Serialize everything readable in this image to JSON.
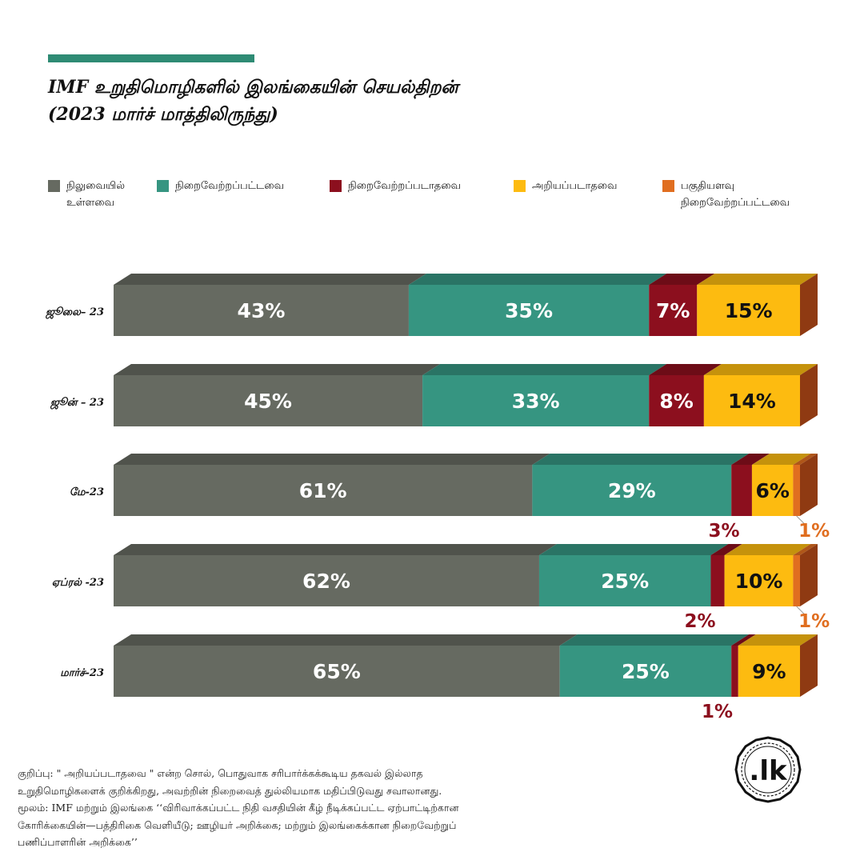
{
  "title": {
    "line1": "IMF உறுதிமொழிகளில் இலங்கையின் செயல்திறன்",
    "line2": "(2023 மார்ச் மாத்திலிருந்து)"
  },
  "colors": {
    "accent": "#2e8b74",
    "pending": "#666a61",
    "fulfilled": "#369581",
    "not_fulfilled": "#8c0f1e",
    "unknown": "#fdbb10",
    "partial": "#e06e20"
  },
  "legend": [
    {
      "key": "pending",
      "label": "நிலுவையில் உள்ளவை"
    },
    {
      "key": "fulfilled",
      "label": "நிறைவேற்றப்பட்டவை"
    },
    {
      "key": "not_fulfilled",
      "label": "நிறைவேற்றப்படாதவை"
    },
    {
      "key": "unknown",
      "label": "அறியப்படாதவை"
    },
    {
      "key": "partial",
      "label": "பகுதியளவு நிறைவேற்றப்பட்டவை"
    }
  ],
  "chart_data": {
    "type": "bar",
    "orientation": "horizontal",
    "stacked": true,
    "value_format": "percent",
    "categories": [
      "ஜூலை– 23",
      "ஜூன் – 23",
      "மே-23",
      "ஏப்ரல் -23",
      "மார்ச்-23"
    ],
    "series": [
      {
        "name": "நிலுவையில் உள்ளவை",
        "key": "pending",
        "values": [
          43,
          45,
          61,
          62,
          65
        ],
        "labels": [
          "43%",
          "45%",
          "61%",
          "62%",
          "65%"
        ]
      },
      {
        "name": "நிறைவேற்றப்பட்டவை",
        "key": "fulfilled",
        "values": [
          35,
          33,
          29,
          25,
          25
        ],
        "labels": [
          "35%",
          "33%",
          "29%",
          "25%",
          "25%"
        ]
      },
      {
        "name": "நிறைவேற்றப்படாதவை",
        "key": "not_fulfilled",
        "values": [
          7,
          8,
          3,
          2,
          1
        ],
        "labels": [
          "7%",
          "8%",
          "3%",
          "2%",
          "1%"
        ]
      },
      {
        "name": "அறியப்படாதவை",
        "key": "unknown",
        "values": [
          15,
          14,
          6,
          10,
          9
        ],
        "labels": [
          "15%",
          "14%",
          "6%",
          "10%",
          "9%"
        ]
      },
      {
        "name": "பகுதியளவு நிறைவேற்றப்பட்டவை",
        "key": "partial",
        "values": [
          0,
          0,
          1,
          1,
          0
        ],
        "labels": [
          "",
          "",
          "1%",
          "1%",
          ""
        ]
      }
    ],
    "xlim": [
      0,
      100
    ],
    "grid": false,
    "legend_position": "top"
  },
  "note": {
    "line1": "குறிப்பு: \" அறியப்படாதவை \" என்ற சொல், பொதுவாக சரிபார்க்கக்கூடிய தகவல் இல்லாத",
    "line2": "உறுதிமொழிகளைக் குறிக்கிறது, அவற்றின் நிறைவைத் துல்லியமாக மதிப்பிடுவது சவாலானது.",
    "line3": "மூலம்: IMF மற்றும் இலங்கை ‘‘விரிவாக்கப்பட்ட நிதி வசதியின் கீழ் நீடிக்கப்பட்ட ஏற்பாட்டிற்கான",
    "line4": "கோரிக்கையின்—பத்திரிகை வெளியீடு; ஊழியர் அறிக்கை; மற்றும் இலங்கைக்கான நிறைவேற்றுப்",
    "line5": "பணிப்பாளரின் அறிக்கை’’"
  },
  "logo": {
    "text": ".lk"
  }
}
